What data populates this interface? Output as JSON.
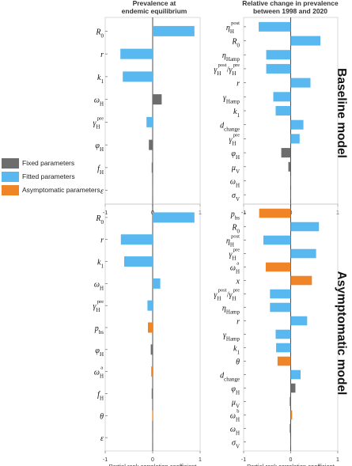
{
  "colors": {
    "fixed": "#6d6d6d",
    "fitted": "#59b8ef",
    "asymptomatic": "#f08528"
  },
  "column_titles": [
    "Prevalence at\nendemic equilibrium",
    "Relative change in prevalence\nbetween 1998 and 2020"
  ],
  "section_labels": {
    "baseline": "Baseline model",
    "asymptomatic": "Asymptomatic model"
  },
  "legend": [
    {
      "label": "Fixed parameters",
      "group": "fixed"
    },
    {
      "label": "Fitted parameters",
      "group": "fitted"
    },
    {
      "label": "Asymptomatic parameters",
      "group": "asymptomatic"
    }
  ],
  "chart_data": [
    {
      "type": "bar",
      "orientation": "horizontal",
      "panel": "baseline-endemic",
      "xlim": [
        -1,
        1
      ],
      "xticks": [
        "-1",
        "0",
        "1"
      ],
      "xlabel": "",
      "categories": [
        "R0",
        "r",
        "k1",
        "ωH",
        "γH^pre",
        "φH",
        "fH",
        "ε"
      ],
      "values": [
        0.88,
        -0.68,
        -0.63,
        0.19,
        -0.13,
        -0.08,
        -0.02,
        -0.01
      ],
      "groups": [
        "fitted",
        "fitted",
        "fitted",
        "fixed",
        "fitted",
        "fixed",
        "fixed",
        "fixed"
      ]
    },
    {
      "type": "bar",
      "orientation": "horizontal",
      "panel": "baseline-change",
      "xlim": [
        -1,
        1
      ],
      "xticks": [
        "-1",
        "0",
        "1"
      ],
      "xlabel": "",
      "categories": [
        "ηH^post",
        "R0",
        "ηHamp",
        "γH^post/γH^pre",
        "r",
        "γHamp",
        "k1",
        "dchange",
        "γH^pre",
        "φH",
        "μV",
        "ωH",
        "σV"
      ],
      "values": [
        -0.68,
        0.63,
        -0.52,
        -0.52,
        0.42,
        -0.37,
        -0.32,
        0.27,
        0.19,
        -0.2,
        -0.05,
        -0.01,
        -0.01
      ],
      "groups": [
        "fitted",
        "fitted",
        "fitted",
        "fitted",
        "fitted",
        "fitted",
        "fitted",
        "fitted",
        "fitted",
        "fixed",
        "fixed",
        "fixed",
        "fixed"
      ]
    },
    {
      "type": "bar",
      "orientation": "horizontal",
      "panel": "asymptomatic-endemic",
      "xlim": [
        -1,
        1
      ],
      "xticks": [
        "-1",
        "0",
        "1"
      ],
      "xlabel": "Partial rank correlation coefficient",
      "categories": [
        "R0",
        "r",
        "k1",
        "ωH",
        "γH^pre",
        "pbs",
        "φH",
        "ωH^a",
        "fH",
        "θ",
        "ε"
      ],
      "values": [
        0.88,
        -0.67,
        -0.6,
        0.16,
        -0.11,
        -0.1,
        -0.04,
        -0.03,
        -0.02,
        -0.01,
        -0.01
      ],
      "groups": [
        "fitted",
        "fitted",
        "fitted",
        "fitted",
        "fitted",
        "asymptomatic",
        "fixed",
        "asymptomatic",
        "fixed",
        "asymptomatic",
        "fixed"
      ]
    },
    {
      "type": "bar",
      "orientation": "horizontal",
      "panel": "asymptomatic-change",
      "xlim": [
        -1,
        1
      ],
      "xticks": [
        "-1",
        "0",
        "1"
      ],
      "xlabel": "Partial rank correlation coefficient",
      "categories": [
        "pbs",
        "R0",
        "ηH^post",
        "γH^pre",
        "ωH^a",
        "x",
        "γH^post/γH^pre",
        "ηHamp",
        "r",
        "γHamp",
        "k1",
        "θ",
        "dchange",
        "φH",
        "μV",
        "ωH^b",
        "ωH",
        "σV"
      ],
      "values": [
        -0.67,
        0.6,
        -0.58,
        0.54,
        -0.53,
        0.45,
        -0.44,
        -0.44,
        0.35,
        -0.32,
        -0.31,
        -0.28,
        0.21,
        0.1,
        -0.02,
        0.03,
        -0.02,
        -0.01
      ],
      "groups": [
        "asymptomatic",
        "fitted",
        "fitted",
        "fitted",
        "asymptomatic",
        "asymptomatic",
        "fitted",
        "fitted",
        "fitted",
        "fitted",
        "fitted",
        "asymptomatic",
        "fitted",
        "fixed",
        "fixed",
        "asymptomatic",
        "fixed",
        "fixed"
      ]
    }
  ]
}
